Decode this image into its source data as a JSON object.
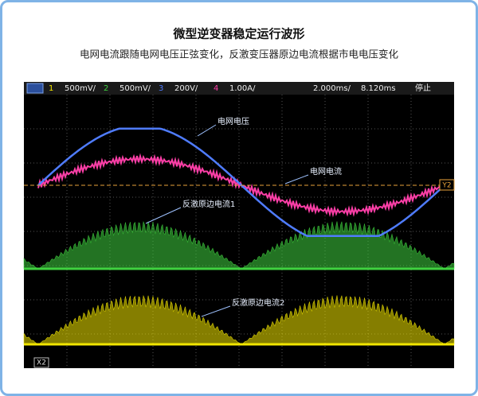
{
  "header": {
    "title": "微型逆变器稳定运行波形",
    "subtitle": "电网电流跟随电网电压正弦变化，反激变压器原边电流根据市电电压变化"
  },
  "scope": {
    "toolbar": {
      "channels": [
        {
          "number": "1",
          "scale": "500mV/",
          "color": "#f2e600"
        },
        {
          "number": "2",
          "scale": "500mV/",
          "color": "#3fd13f"
        },
        {
          "number": "3",
          "scale": "200V/",
          "color": "#4f7cff"
        },
        {
          "number": "4",
          "scale": "1.00A/",
          "color": "#ff3fa8"
        }
      ],
      "timebase": "2.000ms/",
      "delay": "8.120ms",
      "status": "停止"
    },
    "annotations": [
      "电网电压",
      "电网电流",
      "反激原边电流1",
      "反激原边电流2"
    ],
    "markers": [
      "Y2",
      "X2"
    ]
  }
}
